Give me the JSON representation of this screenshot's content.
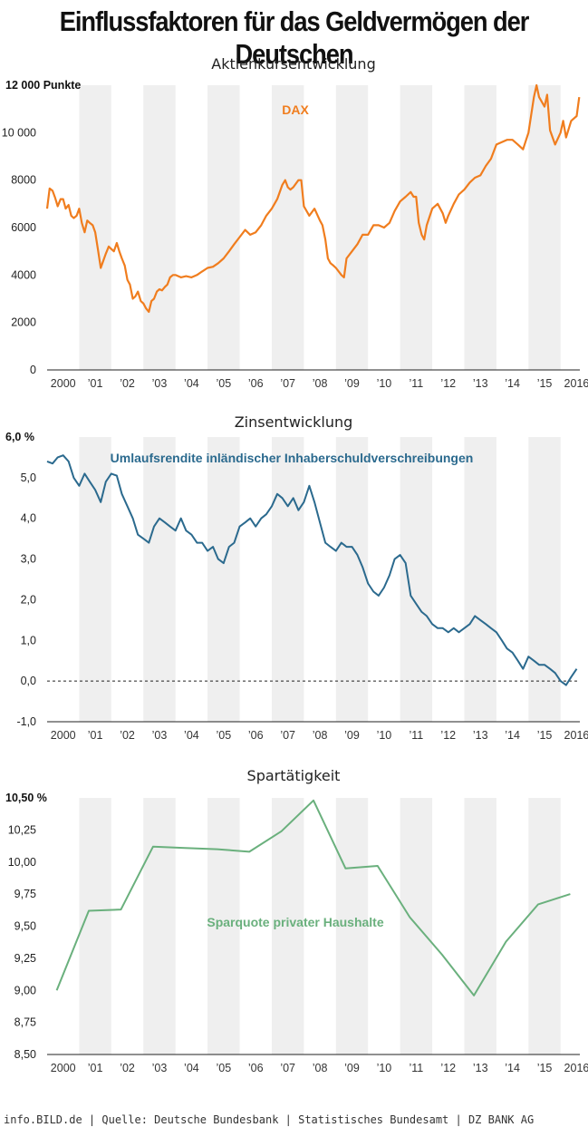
{
  "main_title": "Einflussfaktoren für das Geldvermögen der Deutschen",
  "footer": "info.BILD.de | Quelle: Deutsche Bundesbank | Statistisches Bundesamt | DZ BANK AG",
  "colors": {
    "dax": "#f07d1e",
    "yield": "#2b6a8e",
    "savings": "#6ab07d",
    "band": "#efefef",
    "axis": "#222222"
  },
  "chart_data": [
    {
      "type": "line",
      "title": "Aktienkursentwicklung",
      "series_label": "DAX",
      "ylabel_top": "12 000 Punkte",
      "yticks": [
        "0",
        "2000",
        "4000",
        "6000",
        "8000",
        "10 000"
      ],
      "ytick_values": [
        0,
        2000,
        4000,
        6000,
        8000,
        10000
      ],
      "ylim": [
        0,
        12000
      ],
      "xlim": [
        2000,
        2016.6
      ],
      "x_tick_labels": [
        "2000",
        "’01",
        "’02",
        "’03",
        "’04",
        "’05",
        "’06",
        "’07",
        "’08",
        "’09",
        "’10",
        "’11",
        "’12",
        "’13",
        "’14",
        "’15",
        "2016"
      ],
      "x": [
        2000.0,
        2000.08,
        2000.17,
        2000.25,
        2000.33,
        2000.42,
        2000.5,
        2000.58,
        2000.67,
        2000.75,
        2000.83,
        2000.92,
        2001.0,
        2001.08,
        2001.17,
        2001.25,
        2001.33,
        2001.42,
        2001.5,
        2001.58,
        2001.67,
        2001.75,
        2001.83,
        2001.92,
        2002.0,
        2002.08,
        2002.17,
        2002.25,
        2002.33,
        2002.42,
        2002.5,
        2002.58,
        2002.67,
        2002.75,
        2002.83,
        2002.92,
        2003.0,
        2003.08,
        2003.17,
        2003.25,
        2003.33,
        2003.42,
        2003.5,
        2003.58,
        2003.67,
        2003.75,
        2003.83,
        2003.92,
        2004.0,
        2004.17,
        2004.33,
        2004.5,
        2004.67,
        2004.83,
        2005.0,
        2005.17,
        2005.33,
        2005.5,
        2005.67,
        2005.83,
        2006.0,
        2006.17,
        2006.33,
        2006.5,
        2006.67,
        2006.83,
        2007.0,
        2007.17,
        2007.33,
        2007.42,
        2007.5,
        2007.58,
        2007.67,
        2007.83,
        2007.92,
        2008.0,
        2008.17,
        2008.33,
        2008.5,
        2008.58,
        2008.67,
        2008.75,
        2008.83,
        2008.92,
        2009.0,
        2009.17,
        2009.25,
        2009.33,
        2009.5,
        2009.67,
        2009.83,
        2010.0,
        2010.17,
        2010.33,
        2010.5,
        2010.67,
        2010.83,
        2011.0,
        2011.17,
        2011.33,
        2011.42,
        2011.5,
        2011.58,
        2011.67,
        2011.75,
        2011.83,
        2012.0,
        2012.17,
        2012.33,
        2012.42,
        2012.5,
        2012.67,
        2012.83,
        2013.0,
        2013.17,
        2013.33,
        2013.5,
        2013.67,
        2013.83,
        2014.0,
        2014.17,
        2014.33,
        2014.5,
        2014.67,
        2014.83,
        2015.0,
        2015.17,
        2015.25,
        2015.33,
        2015.5,
        2015.58,
        2015.67,
        2015.83,
        2016.0,
        2016.08,
        2016.17,
        2016.33,
        2016.5,
        2016.58
      ],
      "values": [
        6800,
        7650,
        7550,
        7250,
        6900,
        7200,
        7200,
        6800,
        6950,
        6500,
        6400,
        6500,
        6800,
        6200,
        5800,
        6300,
        6200,
        6100,
        5800,
        5100,
        4300,
        4600,
        4900,
        5200,
        5100,
        5000,
        5350,
        5000,
        4700,
        4400,
        3800,
        3600,
        3000,
        3100,
        3300,
        2900,
        2800,
        2600,
        2450,
        2900,
        3000,
        3300,
        3400,
        3350,
        3500,
        3600,
        3900,
        4000,
        4000,
        3900,
        3950,
        3900,
        4000,
        4150,
        4300,
        4350,
        4500,
        4700,
        5000,
        5300,
        5600,
        5900,
        5700,
        5800,
        6100,
        6500,
        6800,
        7200,
        7800,
        8000,
        7700,
        7600,
        7700,
        8000,
        8000,
        6900,
        6500,
        6800,
        6300,
        6100,
        5500,
        4700,
        4500,
        4400,
        4300,
        4000,
        3900,
        4700,
        5000,
        5300,
        5700,
        5700,
        6100,
        6100,
        6000,
        6200,
        6700,
        7100,
        7300,
        7500,
        7300,
        7300,
        6200,
        5700,
        5500,
        6100,
        6800,
        7000,
        6600,
        6200,
        6500,
        7000,
        7400,
        7600,
        7900,
        8100,
        8200,
        8600,
        8900,
        9500,
        9600,
        9700,
        9700,
        9500,
        9300,
        10000,
        11500,
        12000,
        11500,
        11100,
        11600,
        10100,
        9500,
        10000,
        10500,
        9800,
        10500,
        10700,
        11500
      ]
    },
    {
      "type": "line",
      "title": "Zinsentwicklung",
      "series_label": "Umlaufsrendite inländischer Inhaberschuldverschreibungen",
      "ylabel_top": "6,0 %",
      "yticks": [
        "-1,0",
        "0,0",
        "1,0",
        "2,0",
        "3,0",
        "4,0",
        "5,0"
      ],
      "ytick_values": [
        -1,
        0,
        1,
        2,
        3,
        4,
        5
      ],
      "ylim": [
        -1,
        6
      ],
      "xlim": [
        2000,
        2016.6
      ],
      "x_tick_labels": [
        "2000",
        "’01",
        "’02",
        "’03",
        "’04",
        "’05",
        "’06",
        "’07",
        "’08",
        "’09",
        "’10",
        "’11",
        "’12",
        "’13",
        "’14",
        "’15",
        "2016"
      ],
      "x": [
        2000.0,
        2000.17,
        2000.33,
        2000.5,
        2000.67,
        2000.83,
        2001.0,
        2001.17,
        2001.33,
        2001.5,
        2001.67,
        2001.83,
        2002.0,
        2002.17,
        2002.33,
        2002.5,
        2002.67,
        2002.83,
        2003.0,
        2003.17,
        2003.33,
        2003.5,
        2003.67,
        2003.83,
        2004.0,
        2004.17,
        2004.33,
        2004.5,
        2004.67,
        2004.83,
        2005.0,
        2005.17,
        2005.33,
        2005.5,
        2005.67,
        2005.83,
        2006.0,
        2006.17,
        2006.33,
        2006.5,
        2006.67,
        2006.83,
        2007.0,
        2007.17,
        2007.33,
        2007.5,
        2007.67,
        2007.83,
        2008.0,
        2008.17,
        2008.33,
        2008.5,
        2008.67,
        2008.83,
        2009.0,
        2009.17,
        2009.33,
        2009.5,
        2009.67,
        2009.83,
        2010.0,
        2010.17,
        2010.33,
        2010.5,
        2010.67,
        2010.83,
        2011.0,
        2011.17,
        2011.33,
        2011.5,
        2011.67,
        2011.83,
        2012.0,
        2012.17,
        2012.33,
        2012.5,
        2012.67,
        2012.83,
        2013.0,
        2013.17,
        2013.33,
        2013.5,
        2013.67,
        2013.83,
        2014.0,
        2014.17,
        2014.33,
        2014.5,
        2014.67,
        2014.83,
        2015.0,
        2015.17,
        2015.33,
        2015.5,
        2015.67,
        2015.83,
        2016.0,
        2016.17,
        2016.33,
        2016.5
      ],
      "values": [
        5.4,
        5.35,
        5.5,
        5.55,
        5.4,
        5.0,
        4.8,
        5.1,
        4.9,
        4.7,
        4.4,
        4.9,
        5.1,
        5.05,
        4.6,
        4.3,
        4.0,
        3.6,
        3.5,
        3.4,
        3.8,
        4.0,
        3.9,
        3.8,
        3.7,
        4.0,
        3.7,
        3.6,
        3.4,
        3.4,
        3.2,
        3.3,
        3.0,
        2.9,
        3.3,
        3.4,
        3.8,
        3.9,
        4.0,
        3.8,
        4.0,
        4.1,
        4.3,
        4.6,
        4.5,
        4.3,
        4.5,
        4.2,
        4.4,
        4.8,
        4.4,
        3.9,
        3.4,
        3.3,
        3.2,
        3.4,
        3.3,
        3.3,
        3.1,
        2.8,
        2.4,
        2.2,
        2.1,
        2.3,
        2.6,
        3.0,
        3.1,
        2.9,
        2.1,
        1.9,
        1.7,
        1.6,
        1.4,
        1.3,
        1.3,
        1.2,
        1.3,
        1.2,
        1.3,
        1.4,
        1.6,
        1.5,
        1.4,
        1.3,
        1.2,
        1.0,
        0.8,
        0.7,
        0.5,
        0.3,
        0.6,
        0.5,
        0.4,
        0.4,
        0.3,
        0.2,
        0.0,
        -0.1,
        0.1,
        0.3
      ]
    },
    {
      "type": "line",
      "title": "Spartätigkeit",
      "series_label": "Sparquote privater Haushalte",
      "ylabel_top": "10,50 %",
      "yticks": [
        "8,50",
        "8,75",
        "9,00",
        "9,25",
        "9,50",
        "9,75",
        "10,00",
        "10,25"
      ],
      "ytick_values": [
        8.5,
        8.75,
        9.0,
        9.25,
        9.5,
        9.75,
        10.0,
        10.25
      ],
      "ylim": [
        8.5,
        10.5
      ],
      "xlim": [
        2000,
        2016.6
      ],
      "x_tick_labels": [
        "2000",
        "’01",
        "’02",
        "’03",
        "’04",
        "’05",
        "’06",
        "’07",
        "’08",
        "’09",
        "’10",
        "’11",
        "’12",
        "’13",
        "’14",
        "’15",
        "2016"
      ],
      "x": [
        2000.3,
        2001.3,
        2002.3,
        2003.3,
        2004.3,
        2005.3,
        2006.3,
        2007.3,
        2008.3,
        2009.3,
        2010.3,
        2011.3,
        2012.3,
        2013.3,
        2014.3,
        2015.3,
        2016.3
      ],
      "values": [
        9.0,
        9.62,
        9.63,
        10.12,
        10.11,
        10.1,
        10.08,
        10.24,
        10.48,
        9.95,
        9.97,
        9.57,
        9.28,
        8.96,
        9.38,
        9.67,
        9.75
      ]
    }
  ]
}
